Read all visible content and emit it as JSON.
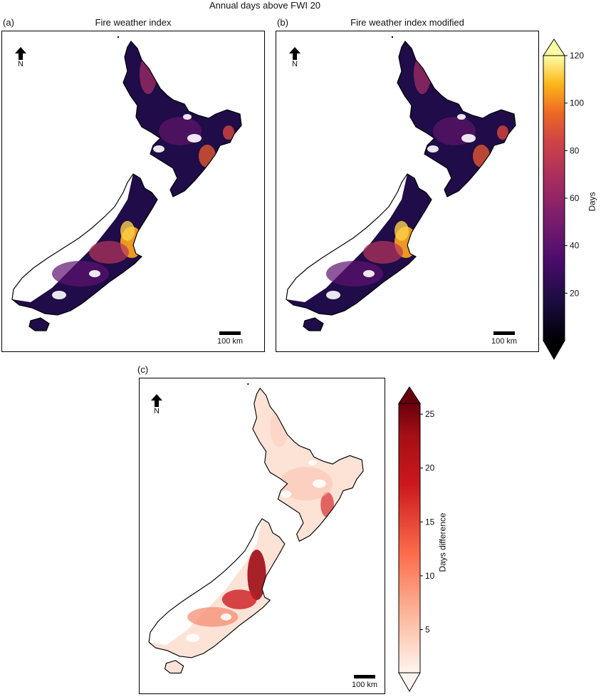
{
  "figure": {
    "title": "Annual days above FWI 20"
  },
  "panels": [
    {
      "letter": "a",
      "title": "Fire weather index",
      "north_label": "N",
      "scale_label": "100 km",
      "palette": "inferno"
    },
    {
      "letter": "b",
      "title": "Fire weather index modified",
      "north_label": "N",
      "scale_label": "100 km",
      "palette": "inferno"
    },
    {
      "letter": "c",
      "title": "",
      "north_label": "N",
      "scale_label": "100 km",
      "palette": "reds"
    }
  ],
  "colorbars": [
    {
      "label": "Days",
      "ticks": [
        "20",
        "40",
        "60",
        "80",
        "100",
        "120"
      ],
      "min": 0,
      "max": 120,
      "extend": "both"
    },
    {
      "label": "Days difference",
      "ticks": [
        "5",
        "10",
        "15",
        "20",
        "25"
      ],
      "min": 1,
      "max": 26,
      "extend": "both"
    }
  ],
  "colors": {
    "inferno_low": "#000004",
    "inferno_mid": "#bc3754",
    "inferno_high": "#fcffa4",
    "reds_low": "#fff5f0",
    "reds_mid": "#ef3b2c",
    "reds_high": "#67000d"
  }
}
